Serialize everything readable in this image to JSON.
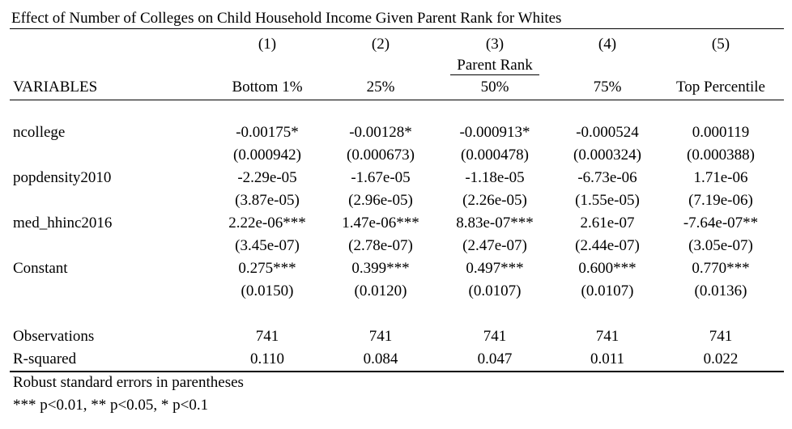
{
  "title": "Effect of Number of Colleges on Child Household Income Given Parent Rank for Whites",
  "columns": {
    "numbers": [
      "(1)",
      "(2)",
      "(3)",
      "(4)",
      "(5)"
    ],
    "group_label": "Parent Rank",
    "names": [
      "Bottom 1%",
      "25%",
      "50%",
      "75%",
      "Top Percentile"
    ],
    "variables_header": "VARIABLES"
  },
  "rows": [
    {
      "label": "ncollege",
      "coef": [
        "-0.00175*",
        "-0.00128*",
        "-0.000913*",
        "-0.000524",
        "0.000119"
      ],
      "se": [
        "(0.000942)",
        "(0.000673)",
        "(0.000478)",
        "(0.000324)",
        "(0.000388)"
      ]
    },
    {
      "label": "popdensity2010",
      "coef": [
        "-2.29e-05",
        "-1.67e-05",
        "-1.18e-05",
        "-6.73e-06",
        "1.71e-06"
      ],
      "se": [
        "(3.87e-05)",
        "(2.96e-05)",
        "(2.26e-05)",
        "(1.55e-05)",
        "(7.19e-06)"
      ]
    },
    {
      "label": "med_hhinc2016",
      "coef": [
        "2.22e-06***",
        "1.47e-06***",
        "8.83e-07***",
        "2.61e-07",
        "-7.64e-07**"
      ],
      "se": [
        "(3.45e-07)",
        "(2.78e-07)",
        "(2.47e-07)",
        "(2.44e-07)",
        "(3.05e-07)"
      ]
    },
    {
      "label": "Constant",
      "coef": [
        "0.275***",
        "0.399***",
        "0.497***",
        "0.600***",
        "0.770***"
      ],
      "se": [
        "(0.0150)",
        "(0.0120)",
        "(0.0107)",
        "(0.0107)",
        "(0.0136)"
      ]
    }
  ],
  "stats": [
    {
      "label": "Observations",
      "values": [
        "741",
        "741",
        "741",
        "741",
        "741"
      ]
    },
    {
      "label": "R-squared",
      "values": [
        "0.110",
        "0.084",
        "0.047",
        "0.011",
        "0.022"
      ]
    }
  ],
  "notes": [
    "Robust standard errors in parentheses",
    "*** p<0.01, ** p<0.05, * p<0.1"
  ]
}
